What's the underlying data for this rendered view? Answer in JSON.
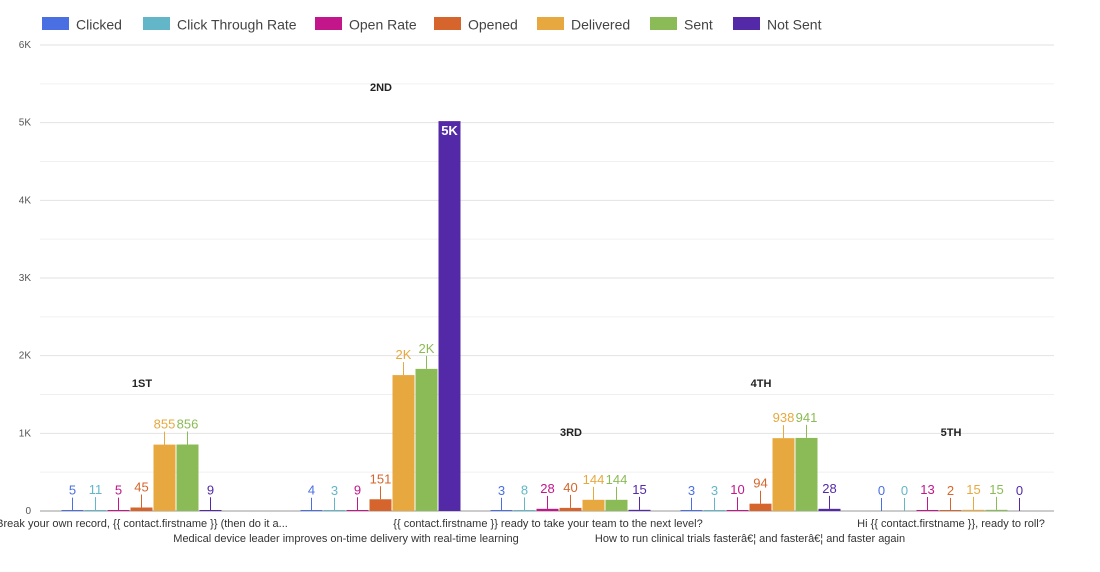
{
  "chart_data": {
    "type": "bar",
    "title": "",
    "xlabel": "",
    "ylabel": "",
    "ylim": [
      0,
      6000
    ],
    "yticks": [
      {
        "value": 0,
        "label": "0"
      },
      {
        "value": 1000,
        "label": "1K"
      },
      {
        "value": 2000,
        "label": "2K"
      },
      {
        "value": 3000,
        "label": "3K"
      },
      {
        "value": 4000,
        "label": "4K"
      },
      {
        "value": 5000,
        "label": "5K"
      },
      {
        "value": 6000,
        "label": "6K"
      }
    ],
    "legend_position": "top-left",
    "categories": [
      "Break your own record, {{ contact.firstname }} (then do it a...",
      "Medical device leader improves on-time delivery with real-time learning",
      "{{ contact.firstname }} ready to take your team to the next level?",
      "How to run clinical trials fasterâ€¦ and fasterâ€¦ and faster again",
      "Hi {{ contact.firstname }}, ready to roll?"
    ],
    "ranks": [
      "1ST",
      "2ND",
      "3RD",
      "4TH",
      "5TH"
    ],
    "series": [
      {
        "name": "Clicked",
        "color": "#4a6fe3",
        "values": [
          5,
          4,
          3,
          3,
          0
        ],
        "labels": [
          "5",
          "4",
          "3",
          "3",
          "0"
        ]
      },
      {
        "name": "Click Through Rate",
        "color": "#62b6c8",
        "values": [
          11,
          3,
          8,
          3,
          0
        ],
        "labels": [
          "11",
          "3",
          "8",
          "3",
          "0"
        ]
      },
      {
        "name": "Open Rate",
        "color": "#c2168a",
        "values": [
          5,
          9,
          28,
          10,
          13
        ],
        "labels": [
          "5",
          "9",
          "28",
          "10",
          "13"
        ]
      },
      {
        "name": "Opened",
        "color": "#d5652c",
        "values": [
          45,
          151,
          40,
          94,
          2
        ],
        "labels": [
          "45",
          "151",
          "40",
          "94",
          "2"
        ]
      },
      {
        "name": "Delivered",
        "color": "#e7a93f",
        "values": [
          855,
          1750,
          144,
          938,
          15
        ],
        "labels": [
          "855",
          "2K",
          "144",
          "938",
          "15"
        ]
      },
      {
        "name": "Sent",
        "color": "#8bbb56",
        "values": [
          856,
          1830,
          144,
          941,
          15
        ],
        "labels": [
          "856",
          "2K",
          "144",
          "941",
          "15"
        ]
      },
      {
        "name": "Not Sent",
        "color": "#5429a8",
        "values": [
          9,
          5020,
          15,
          28,
          0
        ],
        "labels": [
          "9",
          "5K",
          "15",
          "28",
          "0"
        ]
      }
    ]
  }
}
